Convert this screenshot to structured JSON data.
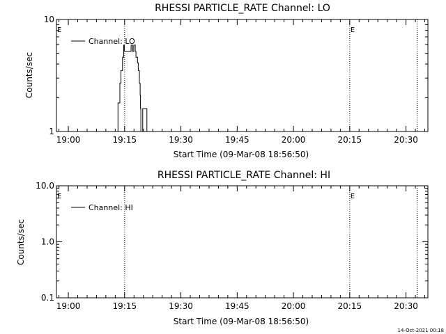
{
  "chart_data": [
    {
      "type": "line",
      "title": "RHESSI PARTICLE_RATE Channel: LO",
      "xlabel": "Start Time (09-Mar-08 18:56:50)",
      "ylabel": "Counts/sec",
      "yscale": "log",
      "ylim": [
        1,
        10
      ],
      "y_ticks": [
        "1",
        "10"
      ],
      "x_ticks": [
        "19:00",
        "19:15",
        "19:30",
        "19:45",
        "20:00",
        "20:15",
        "20:30"
      ],
      "x_tick_minutes": [
        3.167,
        18.167,
        33.167,
        48.167,
        63.167,
        78.167,
        93.167
      ],
      "xlim_minutes": [
        0,
        99
      ],
      "grid": false,
      "legend": {
        "position": "top-left",
        "entries": [
          "Channel: LO"
        ]
      },
      "vlines": [
        {
          "time": "19:15",
          "minutes": 18.167,
          "label": ""
        },
        {
          "time": "20:15",
          "minutes": 78.167,
          "label": "E"
        },
        {
          "time": "20:33",
          "minutes": 96.2,
          "label": ""
        }
      ],
      "flag_left": "E",
      "series": [
        {
          "name": "Channel: LO",
          "x": [
            16.2,
            16.4,
            16.4,
            16.9,
            17.2,
            17.6,
            17.9,
            18.1,
            18.5,
            18.9,
            19.3,
            19.6,
            19.9,
            20.3,
            20.6,
            20.8,
            21.0,
            21.2,
            21.6,
            21.8,
            22.1,
            22.3,
            22.4,
            22.5,
            22.7,
            23.0,
            23.1,
            23.6,
            24.0,
            24.1,
            24.3
          ],
          "y": [
            1,
            1.3,
            1.8,
            2.7,
            3.5,
            4.6,
            5.9,
            5.2,
            5.2,
            5.2,
            5.2,
            5.2,
            5.9,
            5.2,
            5.9,
            5.9,
            5.2,
            4.6,
            4.1,
            3.5,
            2.7,
            2.1,
            1.6,
            1,
            1,
            1.6,
            1.6,
            1.6,
            1.6,
            1,
            1
          ]
        }
      ]
    },
    {
      "type": "line",
      "title": "RHESSI PARTICLE_RATE Channel: HI",
      "xlabel": "Start Time (09-Mar-08 18:56:50)",
      "ylabel": "Counts/sec",
      "yscale": "log",
      "ylim": [
        0.1,
        10
      ],
      "y_ticks": [
        "0.1",
        "1.0",
        "10.0"
      ],
      "x_ticks": [
        "19:00",
        "19:15",
        "19:30",
        "19:45",
        "20:00",
        "20:15",
        "20:30"
      ],
      "x_tick_minutes": [
        3.167,
        18.167,
        33.167,
        48.167,
        63.167,
        78.167,
        93.167
      ],
      "xlim_minutes": [
        0,
        99
      ],
      "grid": false,
      "legend": {
        "position": "top-left",
        "entries": [
          "Channel: HI"
        ]
      },
      "vlines": [
        {
          "time": "19:15",
          "minutes": 18.167,
          "label": ""
        },
        {
          "time": "20:15",
          "minutes": 78.167,
          "label": "E"
        },
        {
          "time": "20:33",
          "minutes": 96.2,
          "label": ""
        }
      ],
      "flag_left": "E",
      "series": [
        {
          "name": "Channel: HI",
          "x": [],
          "y": []
        }
      ]
    }
  ],
  "footer": {
    "timestamp": "14-Oct-2021 00:18"
  }
}
